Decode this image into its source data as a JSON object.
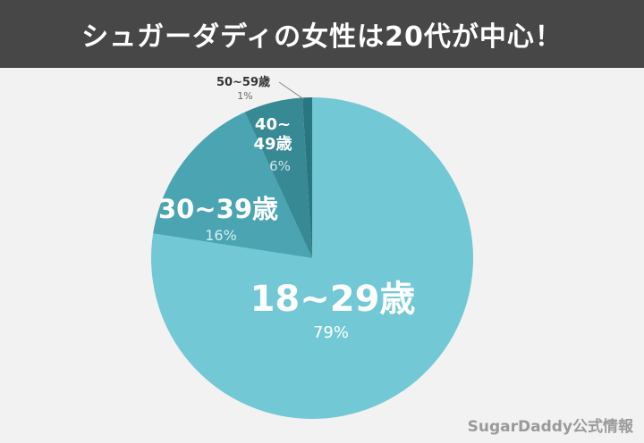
{
  "header": {
    "title": "シュガーダディの女性は20代が中心！"
  },
  "credit": "SugarDaddy公式情報",
  "colors": {
    "header_bg": "#474747",
    "background": "#f2f2f2",
    "slice_18_29": "#72c8d4",
    "slice_30_39": "#4aa4b2",
    "slice_40_49": "#378994",
    "slice_50_59": "#2a7680"
  },
  "chart_data": {
    "type": "pie",
    "categories": [
      "18~29歳",
      "30~39歳",
      "40~49歳",
      "50~59歳"
    ],
    "values": [
      79,
      16,
      6,
      1
    ],
    "value_labels": [
      "79%",
      "16%",
      "6%",
      "1%"
    ],
    "start": "top",
    "direction": "clockwise"
  }
}
